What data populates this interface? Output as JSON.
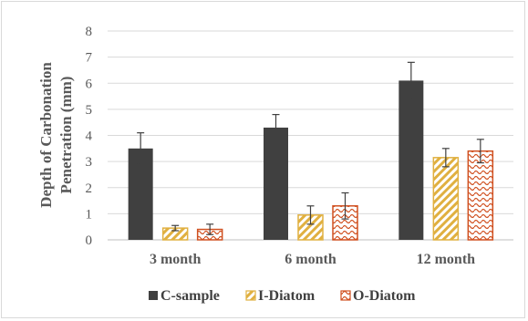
{
  "chart_data": {
    "type": "bar",
    "title": "",
    "ylabel": [
      "Depth of Carbonation",
      "Penetration (mm)"
    ],
    "xlabel": "",
    "categories": [
      "3 month",
      "6 month",
      "12 month"
    ],
    "ylim": [
      0,
      8
    ],
    "yticks": [
      "0",
      "1",
      "2",
      "3",
      "4",
      "5",
      "6",
      "7",
      "8"
    ],
    "grid": true,
    "legend_position": "bottom",
    "series": [
      {
        "name": "C-sample",
        "values": [
          3.5,
          4.3,
          6.1
        ],
        "errors": [
          0.6,
          0.5,
          0.7
        ],
        "fill": "#404040",
        "pattern": "solid"
      },
      {
        "name": "I-Diatom",
        "values": [
          0.45,
          0.95,
          3.15
        ],
        "errors": [
          0.1,
          0.35,
          0.35
        ],
        "fill": "#e0b040",
        "pattern": "diagonal-stripes"
      },
      {
        "name": "O-Diatom",
        "values": [
          0.4,
          1.3,
          3.4
        ],
        "errors": [
          0.2,
          0.5,
          0.45
        ],
        "fill": "#d05020",
        "pattern": "waves"
      }
    ]
  }
}
